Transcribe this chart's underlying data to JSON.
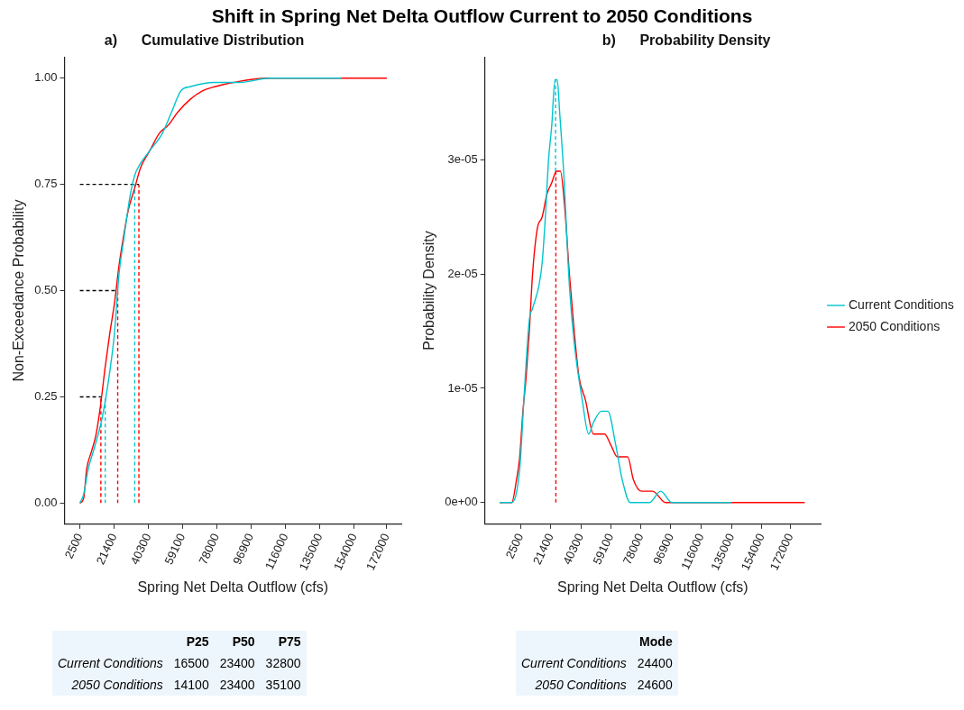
{
  "chart_data": [
    {
      "type": "line",
      "title": "Shift in Spring Net Delta Outflow Current to 2050 Conditions",
      "subtitle": "a)      Cumulative Distribution",
      "xlabel": "Spring Net Delta Outflow (cfs)",
      "ylabel": "Non-Exceedance Probability",
      "xlim": [
        -6000,
        180000
      ],
      "xticks": [
        2500,
        21400,
        40300,
        59100,
        78000,
        96900,
        116000,
        135000,
        154000,
        172000
      ],
      "ylim": [
        -0.05,
        1.05
      ],
      "yticks": [
        {
          "value": 0,
          "label": "0.00"
        },
        {
          "value": 0.25,
          "label": "0.25"
        },
        {
          "value": 0.5,
          "label": "0.50"
        },
        {
          "value": 0.75,
          "label": "0.75"
        },
        {
          "value": 1,
          "label": "1.00"
        }
      ],
      "grid": false,
      "legend": false,
      "marker": "none",
      "line_style": "solid",
      "series": [
        {
          "color": "#00c5cd",
          "x": [
            2500,
            4550,
            7100,
            10510,
            14780,
            19040,
            21600,
            24150,
            26710,
            30120,
            32680,
            36090,
            41200,
            48020,
            53130,
            58250,
            63370,
            77010,
            90650,
            107700,
            146900
          ],
          "values": [
            0,
            0.02,
            0.08,
            0.13,
            0.2,
            0.31,
            0.4,
            0.54,
            0.62,
            0.72,
            0.77,
            0.8,
            0.83,
            0.87,
            0.92,
            0.97,
            0.98,
            0.99,
            0.99,
            1,
            1
          ]
        },
        {
          "color": "#ff0000",
          "x": [
            2500,
            4550,
            6250,
            8810,
            11370,
            13920,
            16480,
            19040,
            21600,
            24150,
            26710,
            29270,
            32680,
            36090,
            41200,
            46320,
            51440,
            56550,
            63370,
            70190,
            77010,
            87240,
            105990,
            172000
          ],
          "values": [
            0,
            0.01,
            0.08,
            0.12,
            0.16,
            0.23,
            0.32,
            0.4,
            0.47,
            0.56,
            0.63,
            0.69,
            0.74,
            0.79,
            0.83,
            0.87,
            0.89,
            0.92,
            0.95,
            0.97,
            0.98,
            0.99,
            1,
            1
          ]
        },
        {
          "color": "#000000",
          "line_style": "dashed",
          "x": [
            2500,
            14100
          ],
          "values": [
            0.25,
            0.25
          ]
        },
        {
          "color": "#000000",
          "line_style": "dashed",
          "x": [
            2500,
            23400
          ],
          "values": [
            0.5,
            0.5
          ]
        },
        {
          "color": "#000000",
          "line_style": "dashed",
          "x": [
            2500,
            35100
          ],
          "values": [
            0.75,
            0.75
          ]
        },
        {
          "color": "#00c5cd",
          "line_style": "dashed",
          "x": [
            16500,
            16500
          ],
          "values": [
            0,
            0.25
          ]
        },
        {
          "color": "#00c5cd",
          "line_style": "dashed",
          "x": [
            32800,
            32800
          ],
          "values": [
            0,
            0.75
          ]
        },
        {
          "color": "#ff0000",
          "line_style": "dashed",
          "x": [
            14100,
            14100
          ],
          "values": [
            0,
            0.25
          ]
        },
        {
          "color": "#ff0000",
          "line_style": "dashed",
          "x": [
            23400,
            23400
          ],
          "values": [
            0,
            0.5
          ]
        },
        {
          "color": "#ff0000",
          "line_style": "dashed",
          "x": [
            35100,
            35100
          ],
          "values": [
            0,
            0.75
          ]
        }
      ]
    },
    {
      "type": "line",
      "subtitle": "b)      Probability Density",
      "xlabel": "Spring Net Delta Outflow (cfs)",
      "ylabel": "Probability Density",
      "xlim": [
        -20000,
        191000
      ],
      "xticks": [
        2500,
        21400,
        40300,
        59100,
        78000,
        96900,
        116000,
        135000,
        154000,
        172000
      ],
      "ylim": [
        -1.9e-06,
        3.9e-05
      ],
      "yticks": [
        {
          "value": 0,
          "label": "0e+00"
        },
        {
          "value": 1e-05,
          "label": "1e-05"
        },
        {
          "value": 2e-05,
          "label": "2e-05"
        },
        {
          "value": 3e-05,
          "label": "3e-05"
        }
      ],
      "grid": false,
      "legend": "right",
      "marker": "none",
      "line_style": "solid",
      "series": [
        {
          "name": "Current Conditions",
          "color": "#00c5cd",
          "x": [
            -10790,
            -3140,
            1900,
            4920,
            7930,
            9950,
            13970,
            15990,
            18000,
            20010,
            22020,
            24030,
            25450,
            27060,
            29470,
            33100,
            36120,
            41150,
            45180,
            48200,
            53230,
            57260,
            62290,
            66320,
            71350,
            77380,
            83420,
            90470,
            97510,
            109600,
            135000
          ],
          "values": [
            0,
            0,
            3e-06,
            1e-05,
            1.6e-05,
            1.7e-05,
            1.9e-05,
            2.1e-05,
            2.5e-05,
            3e-05,
            3.3e-05,
            3.7e-05,
            3.7e-05,
            3.4e-05,
            2.9e-05,
            1.9e-05,
            1.4e-05,
            9e-06,
            6e-06,
            7e-06,
            8e-06,
            8e-06,
            5e-06,
            2e-06,
            0,
            0,
            0,
            1e-06,
            0,
            0,
            0
          ]
        },
        {
          "name": "2050 Conditions",
          "color": "#ff0000",
          "x": [
            -10790,
            -3140,
            -120,
            1900,
            3910,
            5920,
            7930,
            9950,
            12970,
            15990,
            19000,
            22020,
            25050,
            27460,
            30080,
            33100,
            36120,
            39140,
            43160,
            48200,
            55240,
            59270,
            63300,
            69730,
            73360,
            78390,
            85440,
            93490,
            107600,
            133700,
            181000
          ],
          "values": [
            0,
            0,
            2e-06,
            4e-06,
            8e-06,
            1.1e-05,
            1.5e-05,
            2e-05,
            2.4e-05,
            2.5e-05,
            2.7e-05,
            2.8e-05,
            2.9e-05,
            2.9e-05,
            2.6e-05,
            2e-05,
            1.5e-05,
            1.1e-05,
            9e-06,
            6e-06,
            6e-06,
            5e-06,
            4e-06,
            4e-06,
            2e-06,
            1e-06,
            1e-06,
            0,
            0,
            0,
            0
          ]
        },
        {
          "color": "#00c5cd",
          "line_style": "dashed",
          "x": [
            24400,
            24400
          ],
          "values": [
            2.9e-05,
            3.7e-05
          ]
        },
        {
          "color": "#ff0000",
          "line_style": "dashed",
          "x": [
            24600,
            24600
          ],
          "values": [
            0,
            2.9e-05
          ]
        }
      ]
    },
    {
      "type": "heatmap",
      "data_labels": true,
      "categories": [
        "P25",
        "P50",
        "P75"
      ],
      "y_categories": [
        "Current Conditions",
        "2050 Conditions"
      ],
      "cells": [
        [
          16500,
          23400,
          32800
        ],
        [
          14100,
          23400,
          35100
        ]
      ]
    },
    {
      "type": "heatmap",
      "data_labels": true,
      "categories": [
        "Mode"
      ],
      "y_categories": [
        "Current Conditions",
        "2050 Conditions"
      ],
      "cells": [
        [
          24400
        ],
        [
          24600
        ]
      ]
    }
  ]
}
